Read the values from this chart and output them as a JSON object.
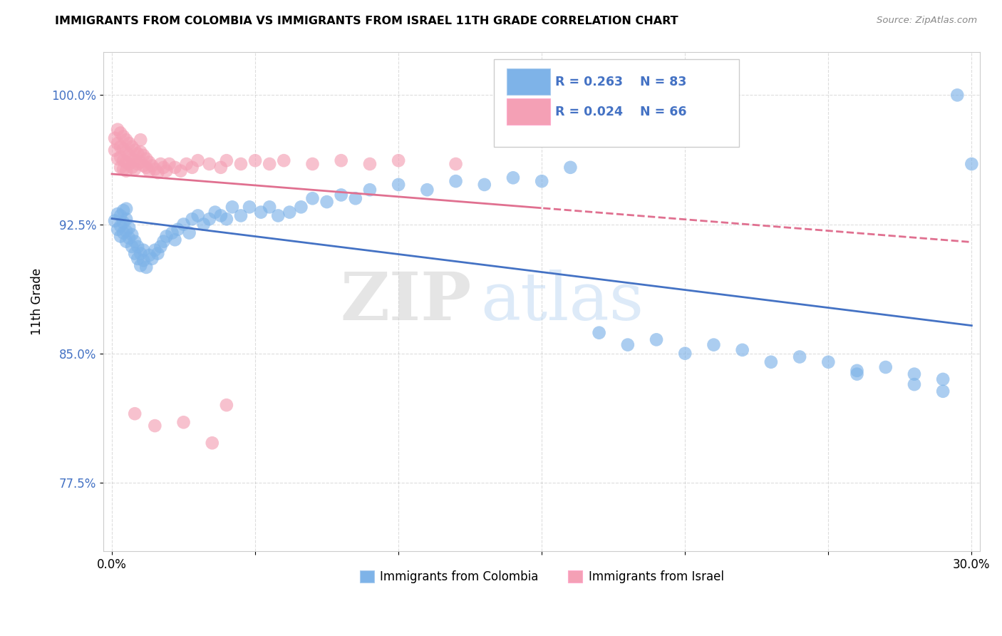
{
  "title": "IMMIGRANTS FROM COLOMBIA VS IMMIGRANTS FROM ISRAEL 11TH GRADE CORRELATION CHART",
  "source": "Source: ZipAtlas.com",
  "xlabel_colombia": "Immigrants from Colombia",
  "xlabel_israel": "Immigrants from Israel",
  "ylabel": "11th Grade",
  "xlim": [
    -0.003,
    0.303
  ],
  "ylim": [
    0.735,
    1.025
  ],
  "xtick_positions": [
    0.0,
    0.05,
    0.1,
    0.15,
    0.2,
    0.25,
    0.3
  ],
  "xtick_labels": [
    "0.0%",
    "",
    "",
    "",
    "",
    "",
    "30.0%"
  ],
  "ytick_positions": [
    0.775,
    0.85,
    0.925,
    1.0
  ],
  "ytick_labels": [
    "77.5%",
    "85.0%",
    "92.5%",
    "100.0%"
  ],
  "R_colombia": 0.263,
  "N_colombia": 83,
  "R_israel": 0.024,
  "N_israel": 66,
  "color_colombia": "#7EB3E8",
  "color_israel": "#F4A0B5",
  "trendline_colombia_color": "#4472C4",
  "trendline_israel_color": "#E07090",
  "watermark_zip": "ZIP",
  "watermark_atlas": "atlas",
  "colombia_x": [
    0.001,
    0.002,
    0.002,
    0.003,
    0.003,
    0.003,
    0.004,
    0.004,
    0.004,
    0.005,
    0.005,
    0.005,
    0.005,
    0.006,
    0.006,
    0.007,
    0.007,
    0.008,
    0.008,
    0.009,
    0.009,
    0.01,
    0.01,
    0.011,
    0.011,
    0.012,
    0.013,
    0.014,
    0.015,
    0.016,
    0.017,
    0.018,
    0.019,
    0.021,
    0.022,
    0.023,
    0.025,
    0.027,
    0.028,
    0.03,
    0.032,
    0.034,
    0.036,
    0.038,
    0.04,
    0.042,
    0.045,
    0.048,
    0.052,
    0.055,
    0.058,
    0.062,
    0.066,
    0.07,
    0.075,
    0.08,
    0.085,
    0.09,
    0.1,
    0.11,
    0.12,
    0.13,
    0.14,
    0.15,
    0.16,
    0.18,
    0.2,
    0.22,
    0.24,
    0.25,
    0.26,
    0.27,
    0.28,
    0.29,
    0.3,
    0.19,
    0.17,
    0.23,
    0.21,
    0.26,
    0.28,
    0.29,
    0.295
  ],
  "colombia_y": [
    0.927,
    0.922,
    0.931,
    0.918,
    0.924,
    0.93,
    0.92,
    0.926,
    0.933,
    0.915,
    0.921,
    0.928,
    0.934,
    0.917,
    0.923,
    0.912,
    0.919,
    0.908,
    0.915,
    0.905,
    0.912,
    0.901,
    0.908,
    0.904,
    0.91,
    0.9,
    0.907,
    0.905,
    0.91,
    0.908,
    0.912,
    0.915,
    0.918,
    0.92,
    0.916,
    0.922,
    0.925,
    0.92,
    0.928,
    0.93,
    0.925,
    0.928,
    0.932,
    0.93,
    0.928,
    0.935,
    0.93,
    0.935,
    0.932,
    0.935,
    0.93,
    0.932,
    0.935,
    0.94,
    0.938,
    0.942,
    0.94,
    0.945,
    0.948,
    0.945,
    0.95,
    0.948,
    0.952,
    0.95,
    0.958,
    0.855,
    0.85,
    0.852,
    0.848,
    0.845,
    0.84,
    0.842,
    0.838,
    0.835,
    0.96,
    0.858,
    0.862,
    0.845,
    0.855,
    0.838,
    0.832,
    0.828,
    1.0
  ],
  "israel_x": [
    0.001,
    0.001,
    0.002,
    0.002,
    0.002,
    0.003,
    0.003,
    0.003,
    0.003,
    0.004,
    0.004,
    0.004,
    0.004,
    0.005,
    0.005,
    0.005,
    0.005,
    0.006,
    0.006,
    0.006,
    0.007,
    0.007,
    0.007,
    0.008,
    0.008,
    0.008,
    0.009,
    0.009,
    0.01,
    0.01,
    0.01,
    0.011,
    0.011,
    0.012,
    0.012,
    0.013,
    0.013,
    0.014,
    0.015,
    0.016,
    0.017,
    0.018,
    0.019,
    0.02,
    0.022,
    0.024,
    0.026,
    0.028,
    0.03,
    0.034,
    0.038,
    0.04,
    0.045,
    0.05,
    0.055,
    0.06,
    0.07,
    0.08,
    0.09,
    0.1,
    0.12,
    0.04,
    0.035,
    0.025,
    0.015,
    0.008
  ],
  "israel_y": [
    0.975,
    0.968,
    0.98,
    0.972,
    0.963,
    0.978,
    0.97,
    0.964,
    0.958,
    0.976,
    0.969,
    0.962,
    0.957,
    0.974,
    0.967,
    0.961,
    0.956,
    0.972,
    0.965,
    0.96,
    0.97,
    0.963,
    0.958,
    0.968,
    0.962,
    0.957,
    0.966,
    0.96,
    0.974,
    0.967,
    0.961,
    0.965,
    0.959,
    0.963,
    0.958,
    0.961,
    0.956,
    0.959,
    0.957,
    0.955,
    0.96,
    0.958,
    0.956,
    0.96,
    0.958,
    0.956,
    0.96,
    0.958,
    0.962,
    0.96,
    0.958,
    0.962,
    0.96,
    0.962,
    0.96,
    0.962,
    0.96,
    0.962,
    0.96,
    0.962,
    0.96,
    0.82,
    0.798,
    0.81,
    0.808,
    0.815
  ]
}
